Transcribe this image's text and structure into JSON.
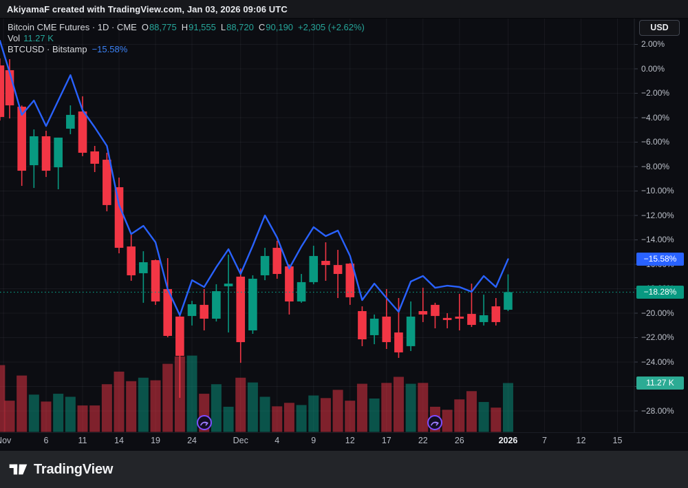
{
  "attribution": "AkiyamaF created with TradingView.com, Jan 03, 2026 09:06 UTC",
  "legend": {
    "symbol_title": "Bitcoin CME Futures · 1D · CME",
    "ohlc": [
      {
        "label": "O",
        "value": "88,775"
      },
      {
        "label": "H",
        "value": "91,555"
      },
      {
        "label": "L",
        "value": "88,720"
      },
      {
        "label": "C",
        "value": "90,190"
      }
    ],
    "change": "+2,305 (+2.62%)",
    "vol_label": "Vol",
    "vol_value": "11.27 K",
    "compare_symbol": "BTCUSD · Bitstamp",
    "compare_change": "−15.58%"
  },
  "price_axis": {
    "currency_button": "USD",
    "labels": [
      {
        "text": "2.00%",
        "pct": 2
      },
      {
        "text": "0.00%",
        "pct": 0
      },
      {
        "text": "−2.00%",
        "pct": -2
      },
      {
        "text": "−4.00%",
        "pct": -4
      },
      {
        "text": "−6.00%",
        "pct": -6
      },
      {
        "text": "−8.00%",
        "pct": -8
      },
      {
        "text": "−10.00%",
        "pct": -10
      },
      {
        "text": "−12.00%",
        "pct": -12
      },
      {
        "text": "−14.00%",
        "pct": -14
      },
      {
        "text": "−16.00%",
        "pct": -16
      },
      {
        "text": "−18.00%",
        "pct": -18
      },
      {
        "text": "−20.00%",
        "pct": -20
      },
      {
        "text": "−22.00%",
        "pct": -22
      },
      {
        "text": "−24.00%",
        "pct": -24
      },
      {
        "text": "−26.00%",
        "pct": -26
      },
      {
        "text": "−28.00%",
        "pct": -28
      }
    ],
    "badges": [
      {
        "name": "comparison-last-badge",
        "text": "−15.58%",
        "pct": -15.58,
        "bg": "#2962ff"
      },
      {
        "name": "price-last-badge",
        "text": "−18.28%",
        "pct": -18.28,
        "bg": "#089981"
      },
      {
        "name": "volume-last-badge",
        "text": "11.27 K",
        "vol_k": 11.27,
        "bg": "#2cab94"
      }
    ]
  },
  "footer": {
    "brand": "TradingView"
  },
  "chart_data": {
    "type": "candlestick",
    "title": "Bitcoin CME Futures · 1D · CME, with BTCUSD Bitstamp comparison line and volume",
    "y_unit": "percent change",
    "ylim": [
      -29.5,
      3.2
    ],
    "grid": true,
    "colors": {
      "up": "#089981",
      "down": "#f23645",
      "line": "#2962ff"
    },
    "time_ticks": [
      {
        "label": "Nov",
        "bar": -0.5
      },
      {
        "label": "6",
        "bar": 3
      },
      {
        "label": "11",
        "bar": 6
      },
      {
        "label": "14",
        "bar": 9
      },
      {
        "label": "19",
        "bar": 12
      },
      {
        "label": "24",
        "bar": 15
      },
      {
        "label": "Dec",
        "bar": 19
      },
      {
        "label": "4",
        "bar": 22
      },
      {
        "label": "9",
        "bar": 25
      },
      {
        "label": "12",
        "bar": 28
      },
      {
        "label": "17",
        "bar": 31
      },
      {
        "label": "22",
        "bar": 34
      },
      {
        "label": "26",
        "bar": 37
      },
      {
        "label": "2026",
        "bar": 41,
        "bold": true
      },
      {
        "label": "7",
        "bar": 44
      },
      {
        "label": "12",
        "bar": 47
      },
      {
        "label": "15",
        "bar": 50
      }
    ],
    "candles": {
      "columns": [
        "date",
        "open_pct",
        "high_pct",
        "low_pct",
        "close_pct",
        "volume_k"
      ],
      "partial_first": [
        "Oct 31",
        0.28,
        0.85,
        -4.23,
        -3.94,
        15.4
      ],
      "rows": [
        [
          "Nov 3",
          -0.11,
          0.79,
          -4.06,
          -2.99,
          7.2
        ],
        [
          "Nov 4",
          -3.1,
          -3.0,
          -9.58,
          -8.34,
          13.0
        ],
        [
          "Nov 5",
          -7.89,
          -4.96,
          -9.75,
          -5.52,
          8.6
        ],
        [
          "Nov 6",
          -5.52,
          -5.07,
          -8.85,
          -8.34,
          7.0
        ],
        [
          "Nov 7",
          -8.06,
          -5.63,
          -9.86,
          -5.63,
          8.8
        ],
        [
          "Nov 10",
          -4.9,
          -2.99,
          -5.35,
          -3.77,
          8.1
        ],
        [
          "Nov 11",
          -3.49,
          -2.25,
          -7.15,
          -6.87,
          6.1
        ],
        [
          "Nov 12",
          -6.76,
          -6.31,
          -8.45,
          -7.77,
          6.1
        ],
        [
          "Nov 13",
          -7.44,
          -6.87,
          -11.66,
          -11.15,
          11.0
        ],
        [
          "Nov 14",
          -9.69,
          -8.9,
          -15.1,
          -14.65,
          13.9
        ],
        [
          "Nov 17",
          -14.54,
          -13.52,
          -17.35,
          -16.9,
          11.7
        ],
        [
          "Nov 18",
          -16.73,
          -14.93,
          -19.15,
          -15.83,
          12.5
        ],
        [
          "Nov 19",
          -15.66,
          -15.61,
          -19.32,
          -19.04,
          11.9
        ],
        [
          "Nov 20",
          -18.03,
          -15.49,
          -21.97,
          -21.86,
          15.7
        ],
        [
          "Nov 21",
          -20.28,
          -20.0,
          -26.93,
          -23.49,
          17.4
        ],
        [
          "Nov 24",
          -20.23,
          -18.99,
          -21.01,
          -19.27,
          17.6
        ],
        [
          "Nov 25",
          -19.32,
          -18.03,
          -21.41,
          -20.45,
          8.8
        ],
        [
          "Nov 26",
          -20.45,
          -17.63,
          -20.68,
          -18.2,
          11.0
        ],
        [
          "Nov 28",
          -17.8,
          -15.21,
          -21.58,
          -17.58,
          5.8
        ],
        [
          "Dec 1",
          -17.01,
          -16.34,
          -24.06,
          -22.37,
          12.5
        ],
        [
          "Dec 2",
          -21.41,
          -16.9,
          -21.69,
          -17.18,
          11.4
        ],
        [
          "Dec 3",
          -16.9,
          -14.65,
          -17.3,
          -15.32,
          8.1
        ],
        [
          "Dec 4",
          -14.65,
          -14.08,
          -17.18,
          -16.79,
          5.9
        ],
        [
          "Dec 5",
          -16.17,
          -16.0,
          -20.11,
          -19.04,
          6.7
        ],
        [
          "Dec 8",
          -19.04,
          -16.79,
          -19.15,
          -17.46,
          6.2
        ],
        [
          "Dec 9",
          -17.46,
          -14.48,
          -17.63,
          -15.32,
          8.4
        ],
        [
          "Dec 10",
          -15.72,
          -14.2,
          -17.35,
          -16.06,
          7.8
        ],
        [
          "Dec 11",
          -16.06,
          -14.82,
          -18.76,
          -16.79,
          9.7
        ],
        [
          "Dec 12",
          -15.94,
          -15.9,
          -19.32,
          -18.7,
          7.2
        ],
        [
          "Dec 15",
          -19.83,
          -19.44,
          -22.7,
          -22.14,
          11.1
        ],
        [
          "Dec 16",
          -21.8,
          -20.11,
          -22.54,
          -20.45,
          7.7
        ],
        [
          "Dec 17",
          -20.28,
          -18.03,
          -22.93,
          -22.37,
          11.3
        ],
        [
          "Dec 18",
          -21.58,
          -18.76,
          -23.66,
          -23.21,
          12.7
        ],
        [
          "Dec 19",
          -22.7,
          -19.04,
          -23.1,
          -20.28,
          11.1
        ],
        [
          "Dec 22",
          -19.83,
          -17.92,
          -20.73,
          -20.11,
          11.3
        ],
        [
          "Dec 23",
          -19.32,
          -19.15,
          -21.24,
          -20.23,
          5.8
        ],
        [
          "Dec 24",
          -20.39,
          -20.0,
          -21.24,
          -20.56,
          5.1
        ],
        [
          "Dec 26",
          -20.28,
          -18.42,
          -21.41,
          -20.45,
          7.5
        ],
        [
          "Dec 29",
          -20.06,
          -17.58,
          -21.13,
          -20.96,
          9.4
        ],
        [
          "Dec 30",
          -20.73,
          -18.48,
          -21.01,
          -20.17,
          6.9
        ],
        [
          "Dec 31",
          -19.44,
          -18.76,
          -21.01,
          -20.73,
          5.6
        ],
        [
          "Jan 2",
          -19.72,
          -16.82,
          -19.83,
          -18.28,
          11.27
        ]
      ]
    },
    "comparison": {
      "symbol": "BTCUSD",
      "exchange": "Bitstamp",
      "last_pct": -15.58,
      "pre_pct": 2.3,
      "values": [
        -0.28,
        -3.77,
        -2.59,
        -4.68,
        -2.59,
        -0.51,
        -3.38,
        -4.79,
        -6.31,
        -11.15,
        -13.52,
        -12.85,
        -14.2,
        -18.03,
        -20.17,
        -17.3,
        -17.86,
        -16.23,
        -14.76,
        -16.79,
        -14.48,
        -12.0,
        -13.8,
        -16.34,
        -14.54,
        -12.96,
        -13.69,
        -13.24,
        -15.32,
        -18.93,
        -17.58,
        -18.76,
        -19.89,
        -17.41,
        -16.96,
        -17.92,
        -17.75,
        -17.86,
        -18.25,
        -16.96,
        -17.86,
        -15.58
      ]
    },
    "price_close_line_pct": -18.28,
    "markers": [
      {
        "bar": 16
      },
      {
        "bar": 35
      }
    ]
  }
}
